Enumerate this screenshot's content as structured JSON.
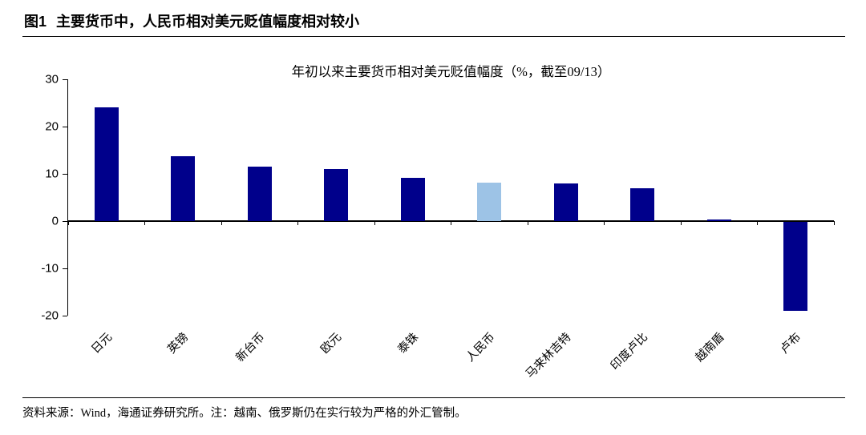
{
  "header": {
    "figure_label": "图1",
    "title": "主要货币中，人民币相对美元贬值幅度相对较小"
  },
  "chart_data": {
    "type": "bar",
    "title": "年初以来主要货币相对美元贬值幅度（%，截至09/13）",
    "categories": [
      "日元",
      "英镑",
      "新台币",
      "欧元",
      "泰铢",
      "人民币",
      "马来林吉特",
      "印度卢比",
      "越南盾",
      "卢布"
    ],
    "values": [
      24,
      13.7,
      11.6,
      11,
      9.2,
      8.2,
      8,
      7,
      0.4,
      -18.8
    ],
    "highlight_category": "人民币",
    "highlight_index": 5,
    "bar_color": "#00008B",
    "highlight_color": "#9DC3E6",
    "axis_color": "#000000",
    "ylim": [
      -20,
      30
    ],
    "yticks": [
      30,
      20,
      10,
      0,
      -10,
      -20
    ],
    "grid": false,
    "legend": "none",
    "xlabel": "",
    "ylabel": ""
  },
  "footer": {
    "source": "资料来源：Wind，海通证券研究所。注：越南、俄罗斯仍在实行较为严格的外汇管制。"
  }
}
